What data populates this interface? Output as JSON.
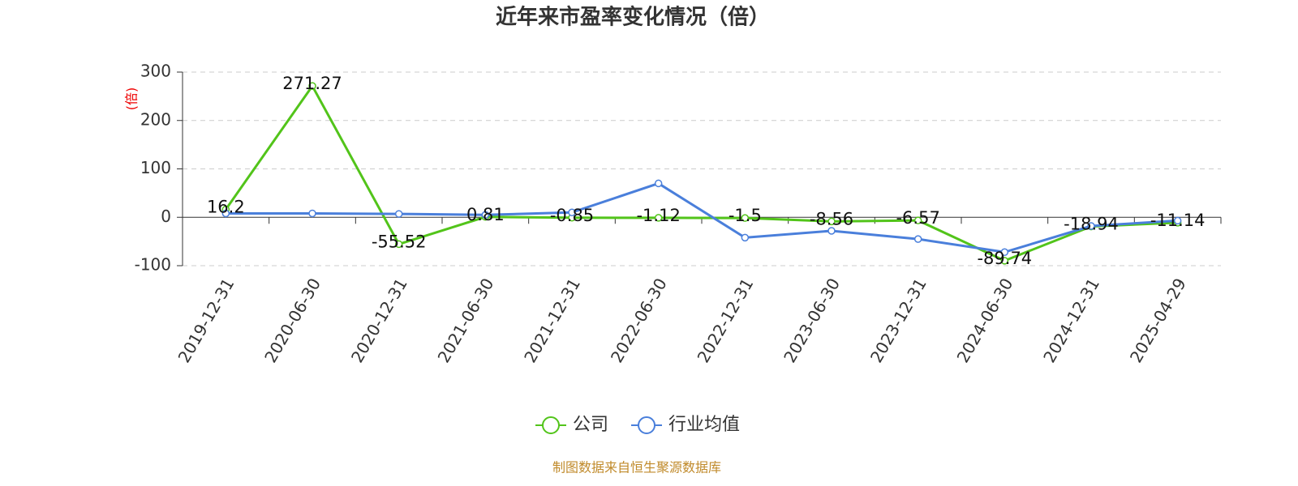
{
  "chart_data": {
    "type": "line",
    "title": "近年来市盈率变化情况（倍）",
    "y_label": "(倍)",
    "source": "制图数据来自恒生聚源数据库",
    "categories": [
      "2019-12-31",
      "2020-06-30",
      "2020-12-31",
      "2021-06-30",
      "2021-12-31",
      "2022-06-30",
      "2022-12-31",
      "2023-06-30",
      "2023-12-31",
      "2024-06-30",
      "2024-12-31",
      "2025-04-29"
    ],
    "series": [
      {
        "name": "公司",
        "color": "#52c41a",
        "show_labels": true,
        "values": [
          16.2,
          271.27,
          -55.52,
          0.81,
          -0.85,
          -1.12,
          -1.5,
          -8.56,
          -6.57,
          -89.74,
          -18.94,
          -11.14
        ]
      },
      {
        "name": "行业均值",
        "color": "#4a7fdb",
        "show_labels": false,
        "values": [
          8,
          8,
          7,
          5,
          10,
          70,
          -42,
          -28,
          -45,
          -72,
          -18,
          -7
        ]
      }
    ],
    "ylim": [
      -100,
      300
    ],
    "yticks": [
      -100,
      0,
      100,
      200,
      300
    ],
    "grid": true,
    "legend": "bottom"
  }
}
